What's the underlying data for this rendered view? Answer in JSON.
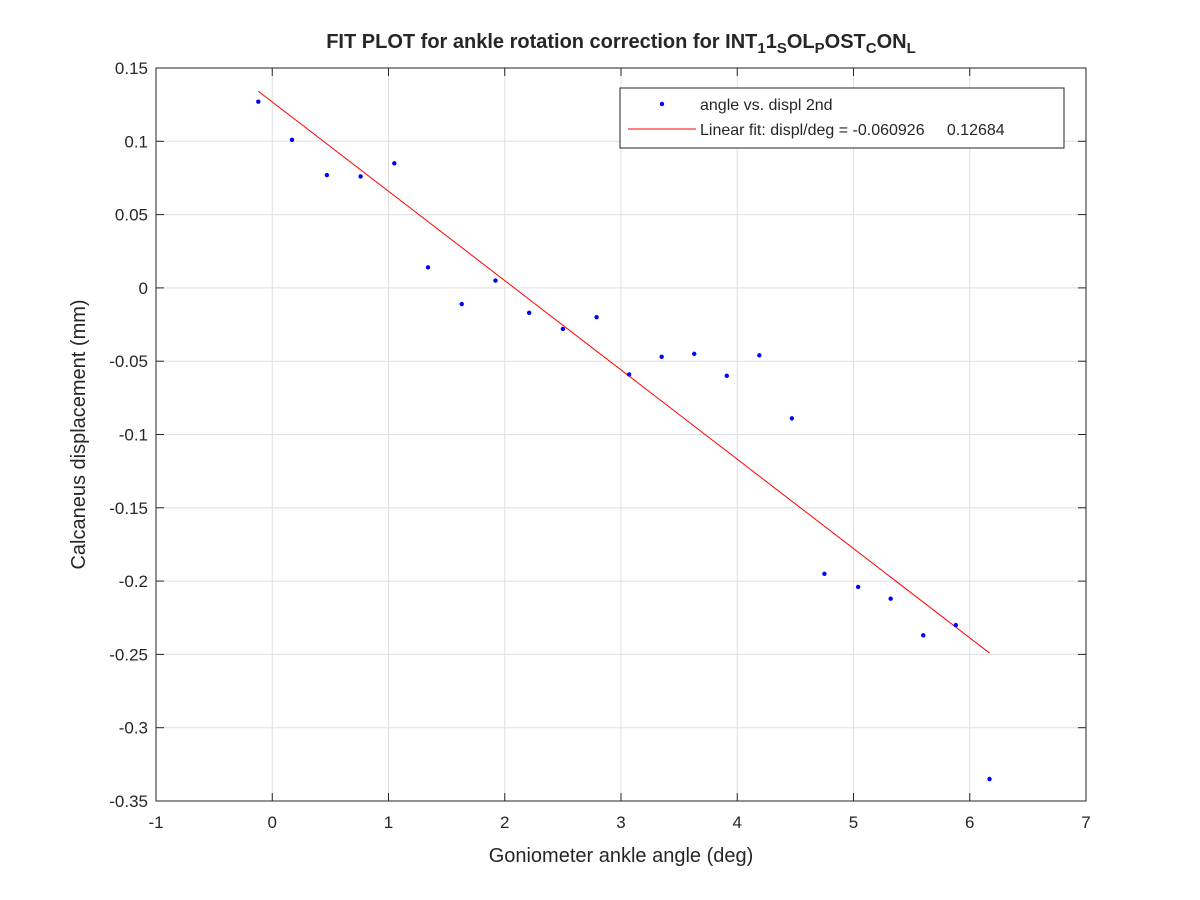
{
  "chart_data": {
    "type": "scatter",
    "title": {
      "parts": [
        {
          "text": "FIT PLOT for ankle rotation correction for INT",
          "sub": false
        },
        {
          "text": "1",
          "sub": true
        },
        {
          "text": "1",
          "sub": false
        },
        {
          "text": "S",
          "sub": true
        },
        {
          "text": "OL",
          "sub": false
        },
        {
          "text": "P",
          "sub": true
        },
        {
          "text": "OST",
          "sub": false
        },
        {
          "text": "C",
          "sub": true
        },
        {
          "text": "ON",
          "sub": false
        },
        {
          "text": "L",
          "sub": true
        }
      ]
    },
    "xlabel": "Goniometer ankle angle (deg)",
    "ylabel": "Calcaneus displacement (mm)",
    "xlim": [
      -1,
      7
    ],
    "ylim": [
      -0.35,
      0.15
    ],
    "xticks": [
      -1,
      0,
      1,
      2,
      3,
      4,
      5,
      6,
      7
    ],
    "yticks": [
      -0.35,
      -0.3,
      -0.25,
      -0.2,
      -0.15,
      -0.1,
      -0.05,
      0,
      0.05,
      0.1,
      0.15
    ],
    "grid": true,
    "legend_position": "top-right",
    "colors": {
      "points": "#0000ff",
      "fit": "#ff0000",
      "grid": "#dfdfdf",
      "axis": "#262626"
    },
    "series": [
      {
        "name": "angle vs. displ 2nd",
        "style": "markers",
        "x": [
          -0.12,
          0.17,
          0.47,
          0.76,
          1.05,
          1.34,
          1.63,
          1.92,
          2.21,
          2.5,
          2.79,
          3.07,
          3.35,
          3.63,
          3.91,
          4.19,
          4.47,
          4.75,
          5.04,
          5.32,
          5.6,
          5.88,
          6.17
        ],
        "y": [
          0.127,
          0.101,
          0.077,
          0.076,
          0.085,
          0.014,
          -0.011,
          0.005,
          -0.017,
          -0.028,
          -0.02,
          -0.059,
          -0.047,
          -0.045,
          -0.06,
          -0.046,
          -0.089,
          -0.195,
          -0.204,
          -0.212,
          -0.237,
          -0.23,
          -0.335
        ]
      },
      {
        "name": "Linear fit: displ/deg = -0.060926     0.12684",
        "style": "line",
        "slope": -0.060926,
        "intercept": 0.12684,
        "x_range": [
          -0.12,
          6.17
        ]
      }
    ]
  }
}
